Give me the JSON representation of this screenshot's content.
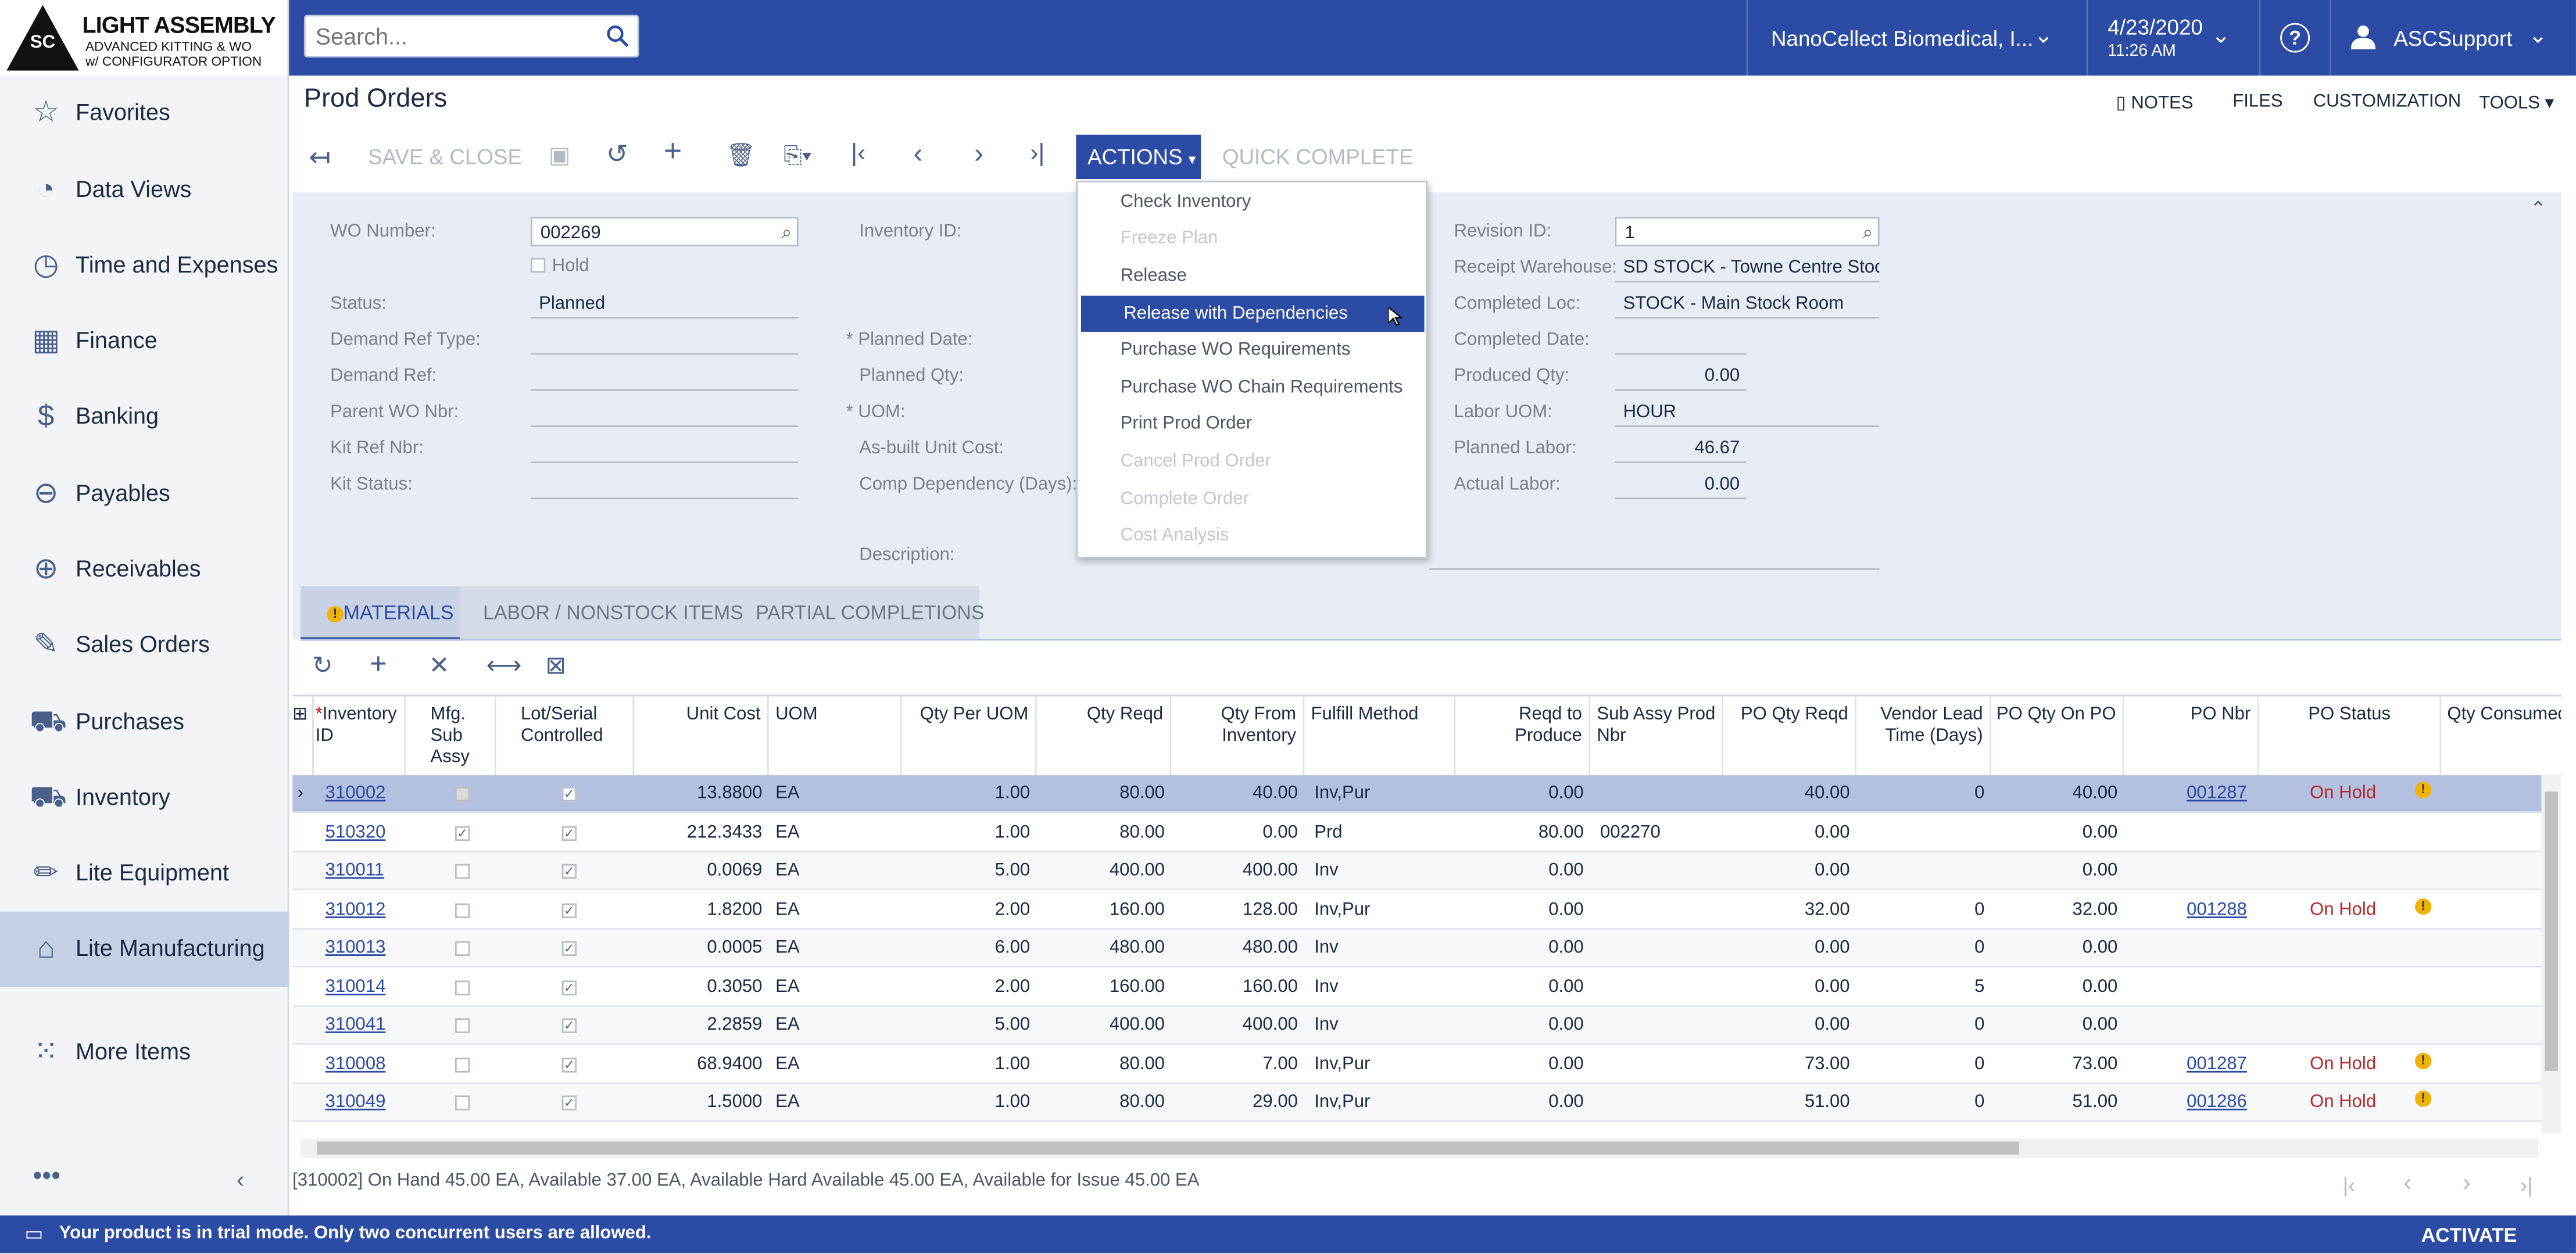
{
  "logo": {
    "line1": "LIGHT ASSEMBLY",
    "line2": "ADVANCED KITTING & WO",
    "line3": "w/ CONFIGURATOR OPTION",
    "badge": "SC"
  },
  "topbar": {
    "search_placeholder": "Search...",
    "company": "NanoCellect Biomedical, I...",
    "date": "4/23/2020",
    "time": "11:26 AM",
    "user": "ASCSupport"
  },
  "sidebar": {
    "items": [
      {
        "label": "Favorites",
        "icon": "star-icon"
      },
      {
        "label": "Data Views",
        "icon": "pie-chart-icon"
      },
      {
        "label": "Time and Expenses",
        "icon": "stopwatch-icon"
      },
      {
        "label": "Finance",
        "icon": "calculator-icon"
      },
      {
        "label": "Banking",
        "icon": "dollar-icon"
      },
      {
        "label": "Payables",
        "icon": "minus-circle-icon"
      },
      {
        "label": "Receivables",
        "icon": "plus-circle-icon"
      },
      {
        "label": "Sales Orders",
        "icon": "edit-icon"
      },
      {
        "label": "Purchases",
        "icon": "cart-icon"
      },
      {
        "label": "Inventory",
        "icon": "truck-icon"
      },
      {
        "label": "Lite Equipment",
        "icon": "pencil-icon"
      },
      {
        "label": "Lite Manufacturing",
        "icon": "crane-icon"
      },
      {
        "label": "More Items",
        "icon": "grid-dots-icon"
      }
    ]
  },
  "page": {
    "title": "Prod Orders",
    "links": [
      "NOTES",
      "FILES",
      "CUSTOMIZATION",
      "TOOLS"
    ]
  },
  "toolbar": {
    "save_close": "SAVE & CLOSE",
    "actions": "ACTIONS",
    "quick_complete": "QUICK COMPLETE"
  },
  "actions_menu": [
    {
      "label": "Check Inventory",
      "state": "enabled"
    },
    {
      "label": "Freeze Plan",
      "state": "disabled"
    },
    {
      "label": "Release",
      "state": "enabled"
    },
    {
      "label": "Release with Dependencies",
      "state": "highlighted"
    },
    {
      "label": "Purchase WO Requirements",
      "state": "enabled"
    },
    {
      "label": "Purchase WO Chain Requirements",
      "state": "enabled"
    },
    {
      "label": "Print Prod Order",
      "state": "enabled"
    },
    {
      "label": "Cancel Prod Order",
      "state": "disabled"
    },
    {
      "label": "Complete Order",
      "state": "disabled"
    },
    {
      "label": "Cost Analysis",
      "state": "disabled"
    }
  ],
  "form": {
    "wo_number_label": "WO Number:",
    "wo_number": "002269",
    "hold_label": "Hold",
    "status_label": "Status:",
    "status": "Planned",
    "demand_ref_type_label": "Demand Ref Type:",
    "demand_ref_label": "Demand Ref:",
    "parent_wo_label": "Parent WO Nbr:",
    "kit_ref_label": "Kit Ref Nbr:",
    "kit_status_label": "Kit Status:",
    "inventory_id_label": "Inventory ID:",
    "planned_date_label": "Planned Date:",
    "planned_qty_label": "Planned Qty:",
    "uom_label": "UOM:",
    "asbuilt_label": "As-built Unit Cost:",
    "comp_dep_label": "Comp Dependency (Days):",
    "description_label": "Description:",
    "revision_label": "Revision ID:",
    "revision": "1",
    "receipt_wh_label": "Receipt Warehouse:",
    "receipt_wh": "SD STOCK - Towne Centre Stoc",
    "completed_loc_label": "Completed Loc:",
    "completed_loc": "STOCK - Main Stock Room",
    "completed_date_label": "Completed Date:",
    "produced_qty_label": "Produced Qty:",
    "produced_qty": "0.00",
    "labor_uom_label": "Labor UOM:",
    "labor_uom": "HOUR",
    "planned_labor_label": "Planned Labor:",
    "planned_labor": "46.67",
    "actual_labor_label": "Actual Labor:",
    "actual_labor": "0.00"
  },
  "tabs": [
    "MATERIALS",
    "LABOR / NONSTOCK ITEMS",
    "PARTIAL COMPLETIONS"
  ],
  "grid": {
    "headers": [
      "Inventory ID",
      "Mfg. Sub Assy",
      "Lot/Serial Controlled",
      "Unit Cost",
      "UOM",
      "Qty Per UOM",
      "Qty Reqd",
      "Qty From Inventory",
      "Fulfill Method",
      "Reqd to Produce",
      "Sub Assy Prod Nbr",
      "PO Qty Reqd",
      "Vendor Lead Time (Days)",
      "PO Qty On PO",
      "PO Nbr",
      "PO Status",
      "Qty Consumed"
    ],
    "rows": [
      {
        "id": "310002",
        "sub": false,
        "lot": true,
        "cost": "13.8800",
        "uom": "EA",
        "per": "1.00",
        "reqd": "80.00",
        "inv": "40.00",
        "method": "Inv,Pur",
        "prod": "0.00",
        "subnbr": "",
        "poreqd": "40.00",
        "lead": "0",
        "onpo": "40.00",
        "ponbr": "001287",
        "postatus": "On Hold",
        "warn": true
      },
      {
        "id": "510320",
        "sub": true,
        "lot": true,
        "cost": "212.3433",
        "uom": "EA",
        "per": "1.00",
        "reqd": "80.00",
        "inv": "0.00",
        "method": "Prd",
        "prod": "80.00",
        "subnbr": "002270",
        "poreqd": "0.00",
        "lead": "",
        "onpo": "0.00",
        "ponbr": "",
        "postatus": "",
        "warn": false
      },
      {
        "id": "310011",
        "sub": false,
        "lot": true,
        "cost": "0.0069",
        "uom": "EA",
        "per": "5.00",
        "reqd": "400.00",
        "inv": "400.00",
        "method": "Inv",
        "prod": "0.00",
        "subnbr": "",
        "poreqd": "0.00",
        "lead": "",
        "onpo": "0.00",
        "ponbr": "",
        "postatus": "",
        "warn": false
      },
      {
        "id": "310012",
        "sub": false,
        "lot": true,
        "cost": "1.8200",
        "uom": "EA",
        "per": "2.00",
        "reqd": "160.00",
        "inv": "128.00",
        "method": "Inv,Pur",
        "prod": "0.00",
        "subnbr": "",
        "poreqd": "32.00",
        "lead": "0",
        "onpo": "32.00",
        "ponbr": "001288",
        "postatus": "On Hold",
        "warn": true
      },
      {
        "id": "310013",
        "sub": false,
        "lot": true,
        "cost": "0.0005",
        "uom": "EA",
        "per": "6.00",
        "reqd": "480.00",
        "inv": "480.00",
        "method": "Inv",
        "prod": "0.00",
        "subnbr": "",
        "poreqd": "0.00",
        "lead": "0",
        "onpo": "0.00",
        "ponbr": "",
        "postatus": "",
        "warn": false
      },
      {
        "id": "310014",
        "sub": false,
        "lot": true,
        "cost": "0.3050",
        "uom": "EA",
        "per": "2.00",
        "reqd": "160.00",
        "inv": "160.00",
        "method": "Inv",
        "prod": "0.00",
        "subnbr": "",
        "poreqd": "0.00",
        "lead": "5",
        "onpo": "0.00",
        "ponbr": "",
        "postatus": "",
        "warn": false
      },
      {
        "id": "310041",
        "sub": false,
        "lot": true,
        "cost": "2.2859",
        "uom": "EA",
        "per": "5.00",
        "reqd": "400.00",
        "inv": "400.00",
        "method": "Inv",
        "prod": "0.00",
        "subnbr": "",
        "poreqd": "0.00",
        "lead": "0",
        "onpo": "0.00",
        "ponbr": "",
        "postatus": "",
        "warn": false
      },
      {
        "id": "310008",
        "sub": false,
        "lot": true,
        "cost": "68.9400",
        "uom": "EA",
        "per": "1.00",
        "reqd": "80.00",
        "inv": "7.00",
        "method": "Inv,Pur",
        "prod": "0.00",
        "subnbr": "",
        "poreqd": "73.00",
        "lead": "0",
        "onpo": "73.00",
        "ponbr": "001287",
        "postatus": "On Hold",
        "warn": true
      },
      {
        "id": "310049",
        "sub": false,
        "lot": true,
        "cost": "1.5000",
        "uom": "EA",
        "per": "1.00",
        "reqd": "80.00",
        "inv": "29.00",
        "method": "Inv,Pur",
        "prod": "0.00",
        "subnbr": "",
        "poreqd": "51.00",
        "lead": "0",
        "onpo": "51.00",
        "ponbr": "001286",
        "postatus": "On Hold",
        "warn": true
      }
    ]
  },
  "status_line": "[310002] On Hand 45.00 EA, Available 37.00 EA, Available Hard Available 45.00 EA, Available for Issue 45.00 EA",
  "trial": {
    "message": "Your product is in trial mode. Only two concurrent users are allowed.",
    "activate": "ACTIVATE"
  }
}
